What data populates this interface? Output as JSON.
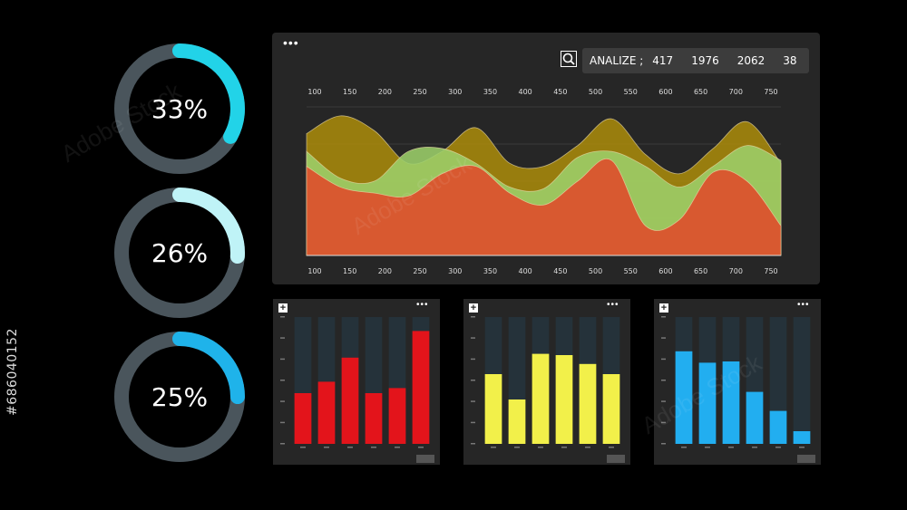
{
  "gauges": [
    {
      "label": "33%",
      "value": 0.33,
      "color": "#22d3e8"
    },
    {
      "label": "26%",
      "value": 0.26,
      "color": "#bff3f7"
    },
    {
      "label": "25%",
      "value": 0.25,
      "color": "#1fb3ea"
    }
  ],
  "gauge_track_color": "#4a555c",
  "side_id": "#686040152",
  "main_panel": {
    "menu_icon": "dots-icon",
    "analyze": {
      "label": "ANALIZE ;",
      "values": [
        "417",
        "1976",
        "2062",
        "38"
      ]
    }
  },
  "chart_data": [
    {
      "type": "area",
      "x_ticks": [
        "100",
        "150",
        "200",
        "250",
        "300",
        "350",
        "400",
        "450",
        "500",
        "550",
        "600",
        "650",
        "700",
        "750"
      ],
      "ylim": [
        0,
        100
      ],
      "grid": true,
      "series": [
        {
          "color": "#a88a0b",
          "values": [
            82,
            94,
            84,
            62,
            70,
            86,
            62,
            60,
            74,
            92,
            68,
            55,
            72,
            90,
            62
          ]
        },
        {
          "color": "#9ccf6a",
          "values": [
            70,
            52,
            50,
            70,
            72,
            62,
            46,
            45,
            66,
            70,
            60,
            46,
            60,
            74,
            64
          ]
        },
        {
          "color": "#e04a2a",
          "values": [
            60,
            46,
            42,
            40,
            55,
            60,
            42,
            34,
            50,
            64,
            20,
            24,
            56,
            50,
            20
          ]
        }
      ],
      "colors": {
        "top": "#a88a0b",
        "mid": "#9ccf6a",
        "bottom": "#e04a2a"
      }
    },
    {
      "type": "bar",
      "color": "#e3141b",
      "values": [
        40,
        49,
        68,
        40,
        44,
        89
      ],
      "ylim": [
        0,
        100
      ]
    },
    {
      "type": "bar",
      "color": "#f2f04a",
      "values": [
        55,
        35,
        71,
        70,
        63,
        55
      ],
      "ylim": [
        0,
        100
      ]
    },
    {
      "type": "bar",
      "color": "#22aef0",
      "values": [
        73,
        64,
        65,
        41,
        26,
        10
      ],
      "ylim": [
        0,
        100
      ]
    }
  ],
  "watermark": "Adobe Stock"
}
